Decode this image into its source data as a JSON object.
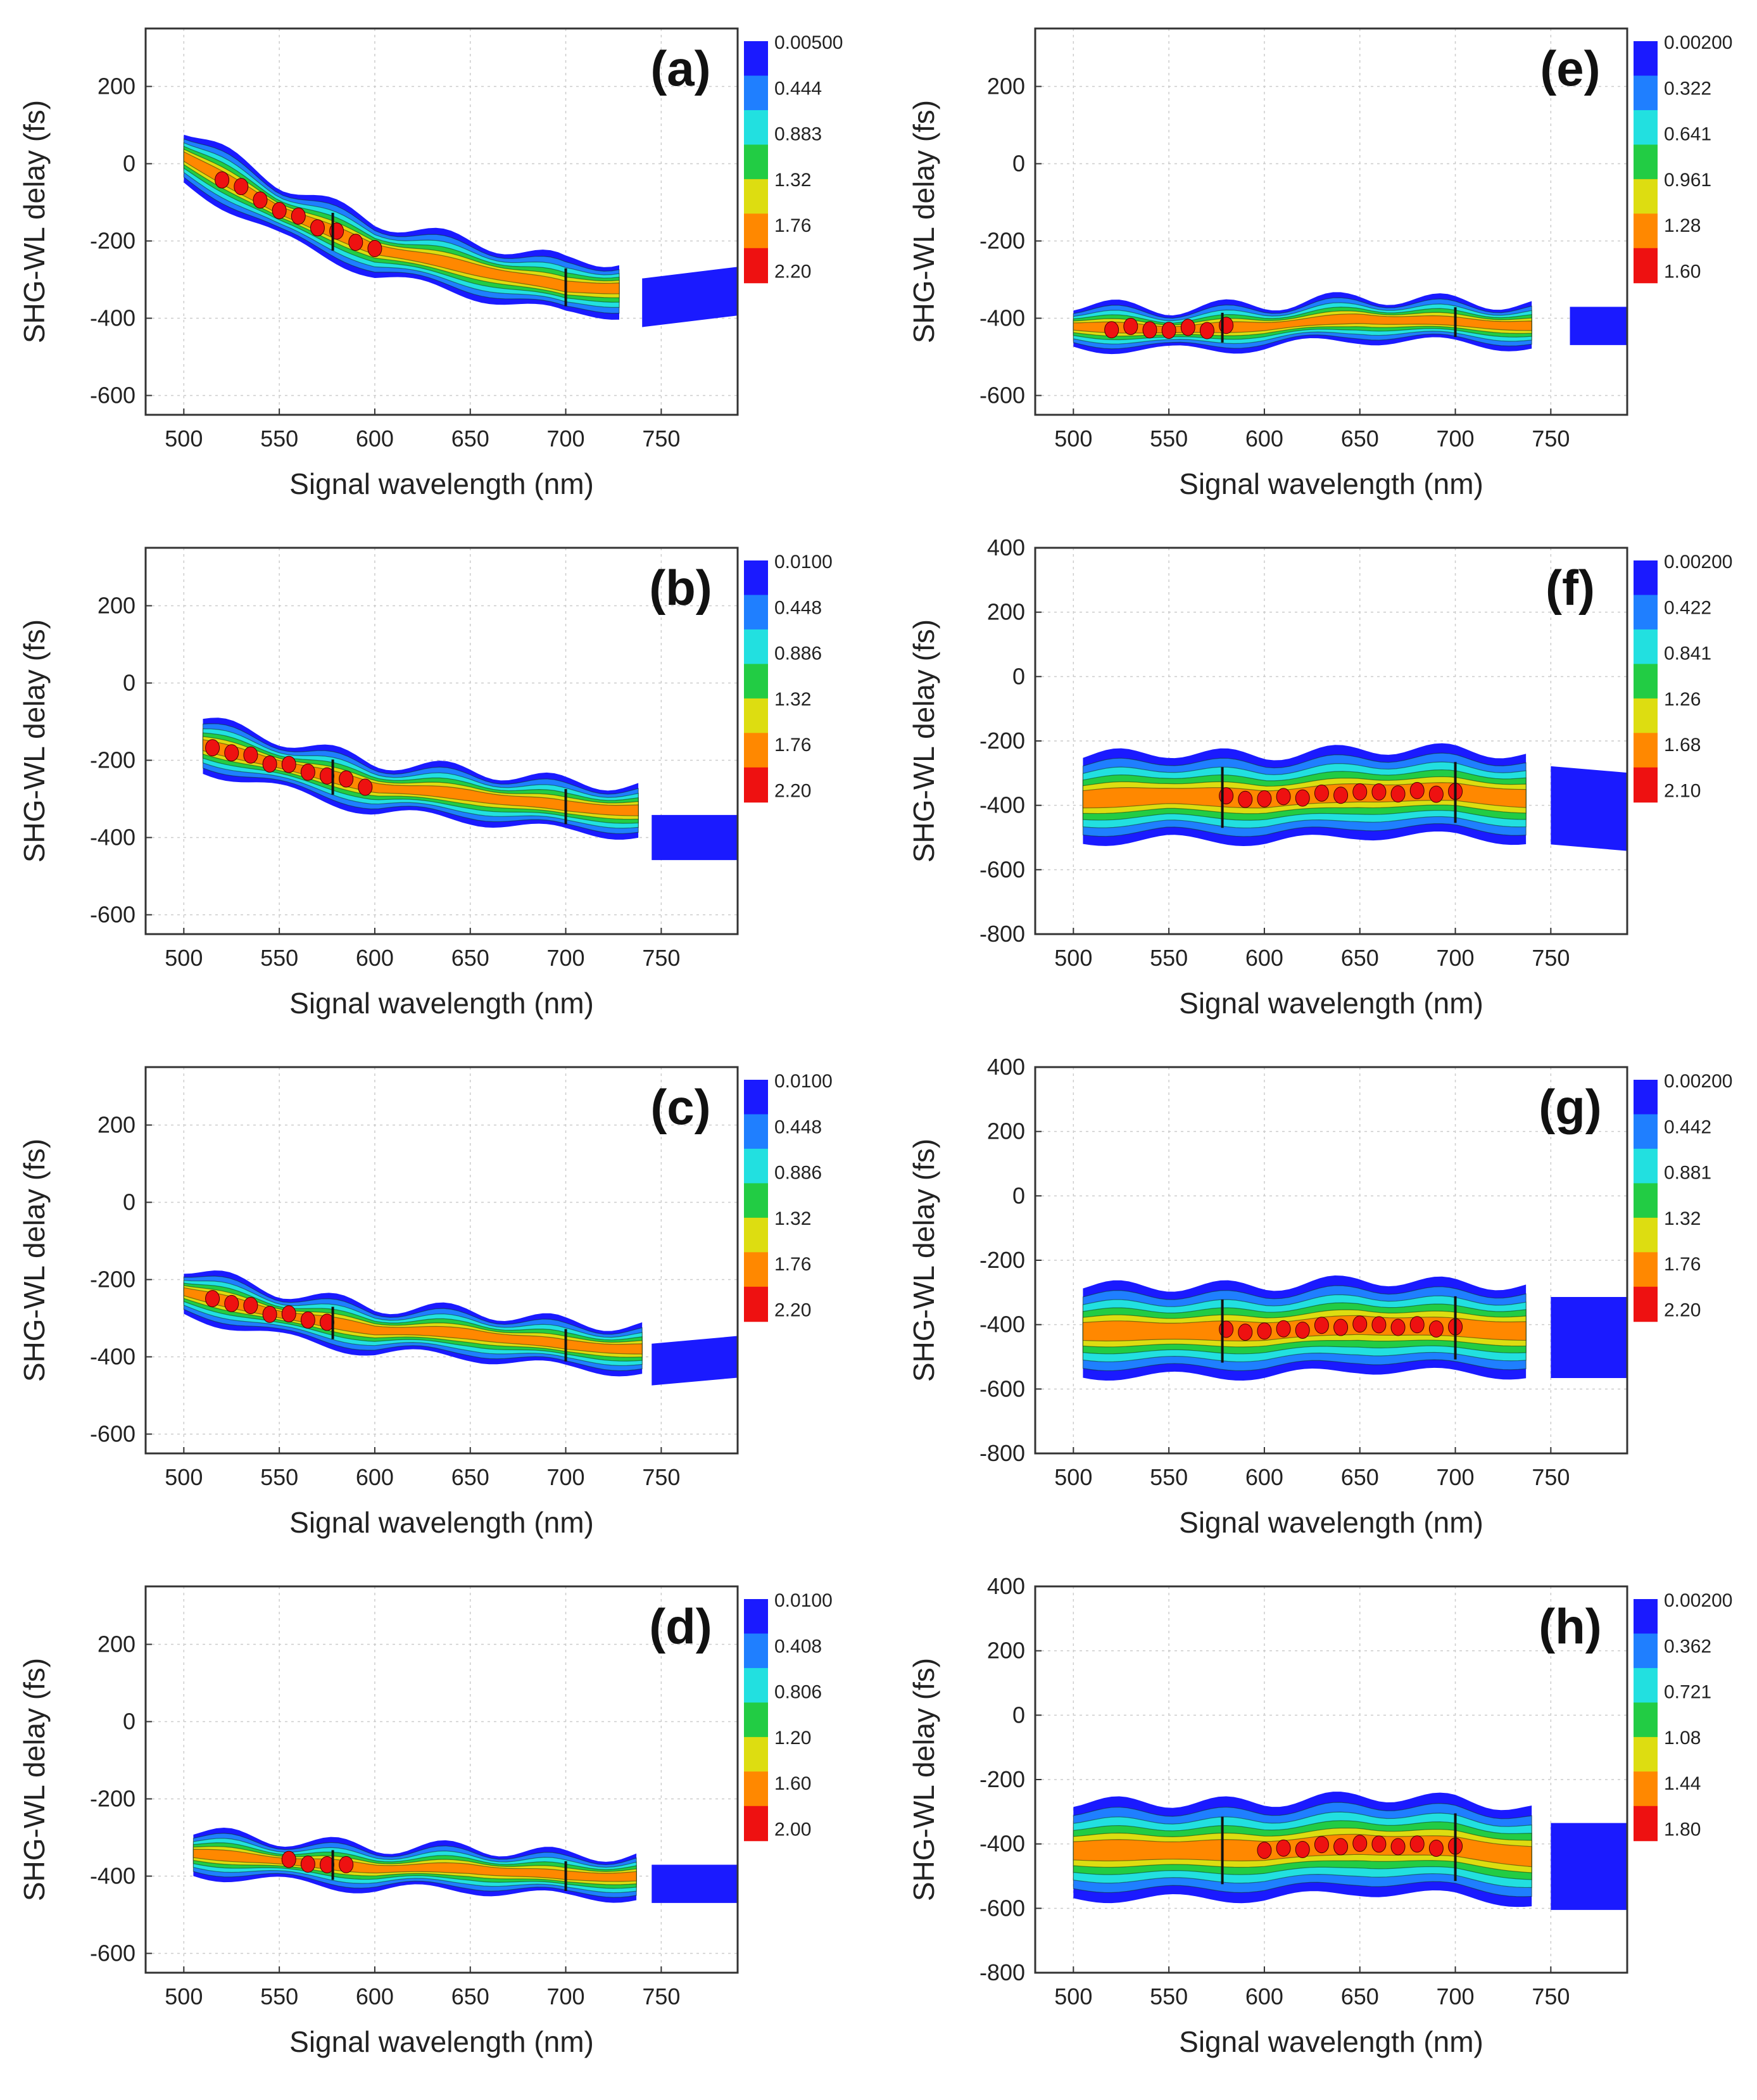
{
  "figure": {
    "x_label": "Signal wavelength (nm)",
    "y_label": "SHG-WL delay (fs)",
    "colors": [
      "#1a1aff",
      "#1f7fff",
      "#22e0e0",
      "#22cc44",
      "#dddd11",
      "#ff8800",
      "#ee1111"
    ]
  },
  "chart_data": [
    {
      "type": "heatmap",
      "panel_label": "(a)",
      "xlim": [
        480,
        790
      ],
      "ylim": [
        -650,
        350
      ],
      "xticks": [
        500,
        550,
        600,
        650,
        700,
        750
      ],
      "yticks": [
        -600,
        -400,
        -200,
        0,
        200
      ],
      "colorbar_labels": [
        "0.00500",
        "0.444",
        "0.883",
        "1.32",
        "1.76",
        "2.20"
      ],
      "ridge": [
        [
          500,
          20
        ],
        [
          550,
          -120
        ],
        [
          600,
          -220
        ],
        [
          650,
          -270
        ],
        [
          700,
          -320
        ],
        [
          730,
          -320
        ]
      ],
      "outer_width": 140,
      "peak_x": [
        520,
        600
      ],
      "tail": [
        [
          740,
          -360
        ],
        [
          790,
          -330
        ]
      ]
    },
    {
      "type": "heatmap",
      "panel_label": "(b)",
      "xlim": [
        480,
        790
      ],
      "ylim": [
        -650,
        350
      ],
      "xticks": [
        500,
        550,
        600,
        650,
        700,
        750
      ],
      "yticks": [
        -600,
        -400,
        -200,
        0,
        200
      ],
      "colorbar_labels": [
        "0.0100",
        "0.448",
        "0.886",
        "1.32",
        "1.76",
        "2.20"
      ],
      "ridge": [
        [
          510,
          -160
        ],
        [
          550,
          -210
        ],
        [
          600,
          -270
        ],
        [
          650,
          -290
        ],
        [
          700,
          -320
        ],
        [
          740,
          -330
        ]
      ],
      "outer_width": 130,
      "peak_x": [
        515,
        600
      ],
      "tail": [
        [
          745,
          -400
        ],
        [
          790,
          -400
        ]
      ]
    },
    {
      "type": "heatmap",
      "panel_label": "(c)",
      "xlim": [
        480,
        790
      ],
      "ylim": [
        -650,
        350
      ],
      "xticks": [
        500,
        550,
        600,
        650,
        700,
        750
      ],
      "yticks": [
        -600,
        -400,
        -200,
        0,
        200
      ],
      "colorbar_labels": [
        "0.0100",
        "0.448",
        "0.886",
        "1.32",
        "1.76",
        "2.20"
      ],
      "ridge": [
        [
          500,
          -230
        ],
        [
          550,
          -290
        ],
        [
          600,
          -330
        ],
        [
          650,
          -340
        ],
        [
          700,
          -370
        ],
        [
          740,
          -380
        ]
      ],
      "outer_width": 120,
      "peak_x": [
        515,
        575
      ],
      "tail": [
        [
          745,
          -420
        ],
        [
          790,
          -400
        ]
      ]
    },
    {
      "type": "heatmap",
      "panel_label": "(d)",
      "xlim": [
        480,
        790
      ],
      "ylim": [
        -650,
        350
      ],
      "xticks": [
        500,
        550,
        600,
        650,
        700,
        750
      ],
      "yticks": [
        -600,
        -400,
        -200,
        0,
        200
      ],
      "colorbar_labels": [
        "0.0100",
        "0.408",
        "0.806",
        "1.20",
        "1.60",
        "2.00"
      ],
      "ridge": [
        [
          505,
          -340
        ],
        [
          550,
          -360
        ],
        [
          600,
          -380
        ],
        [
          650,
          -380
        ],
        [
          700,
          -400
        ],
        [
          740,
          -400
        ]
      ],
      "outer_width": 110,
      "peak_x": [
        555,
        585
      ],
      "tail": [
        [
          745,
          -420
        ],
        [
          790,
          -420
        ]
      ]
    },
    {
      "type": "heatmap",
      "panel_label": "(e)",
      "xlim": [
        480,
        790
      ],
      "ylim": [
        -650,
        350
      ],
      "xticks": [
        500,
        550,
        600,
        650,
        700,
        750
      ],
      "yticks": [
        -600,
        -400,
        -200,
        0,
        200
      ],
      "colorbar_labels": [
        "0.00200",
        "0.322",
        "0.641",
        "0.961",
        "1.28",
        "1.60"
      ],
      "ridge": [
        [
          500,
          -420
        ],
        [
          550,
          -430
        ],
        [
          600,
          -420
        ],
        [
          650,
          -400
        ],
        [
          700,
          -410
        ],
        [
          740,
          -420
        ]
      ],
      "outer_width": 110,
      "peak_x": [
        520,
        580
      ],
      "tail": [
        [
          760,
          -420
        ],
        [
          790,
          -420
        ]
      ]
    },
    {
      "type": "heatmap",
      "panel_label": "(f)",
      "xlim": [
        480,
        790
      ],
      "ylim": [
        -800,
        400
      ],
      "xticks": [
        500,
        550,
        600,
        650,
        700,
        750
      ],
      "yticks": [
        -800,
        -600,
        -400,
        -200,
        0,
        200,
        400
      ],
      "colorbar_labels": [
        "0.00200",
        "0.422",
        "0.841",
        "1.26",
        "1.68",
        "2.10"
      ],
      "ridge": [
        [
          505,
          -380
        ],
        [
          550,
          -370
        ],
        [
          600,
          -380
        ],
        [
          650,
          -360
        ],
        [
          700,
          -360
        ],
        [
          740,
          -380
        ]
      ],
      "outer_width": 270,
      "peak_x": [
        580,
        700
      ],
      "tail": [
        [
          750,
          -400
        ],
        [
          790,
          -420
        ]
      ]
    },
    {
      "type": "heatmap",
      "panel_label": "(g)",
      "xlim": [
        480,
        790
      ],
      "ylim": [
        -800,
        400
      ],
      "xticks": [
        500,
        550,
        600,
        650,
        700,
        750
      ],
      "yticks": [
        -800,
        -600,
        -400,
        -200,
        0,
        200,
        400
      ],
      "colorbar_labels": [
        "0.00200",
        "0.442",
        "0.881",
        "1.32",
        "1.76",
        "2.20"
      ],
      "ridge": [
        [
          505,
          -420
        ],
        [
          550,
          -420
        ],
        [
          600,
          -420
        ],
        [
          650,
          -400
        ],
        [
          700,
          -410
        ],
        [
          740,
          -420
        ]
      ],
      "outer_width": 280,
      "peak_x": [
        580,
        700
      ],
      "tail": [
        [
          750,
          -440
        ],
        [
          790,
          -440
        ]
      ]
    },
    {
      "type": "heatmap",
      "panel_label": "(h)",
      "xlim": [
        480,
        790
      ],
      "ylim": [
        -800,
        400
      ],
      "xticks": [
        500,
        550,
        600,
        650,
        700,
        750
      ],
      "yticks": [
        -800,
        -600,
        -400,
        -200,
        0,
        200,
        400
      ],
      "colorbar_labels": [
        "0.00200",
        "0.362",
        "0.721",
        "1.08",
        "1.44",
        "1.80"
      ],
      "ridge": [
        [
          500,
          -420
        ],
        [
          550,
          -420
        ],
        [
          600,
          -420
        ],
        [
          650,
          -400
        ],
        [
          700,
          -410
        ],
        [
          740,
          -440
        ]
      ],
      "outer_width": 300,
      "peak_x": [
        600,
        700
      ],
      "tail": [
        [
          750,
          -470
        ],
        [
          790,
          -470
        ]
      ]
    }
  ]
}
